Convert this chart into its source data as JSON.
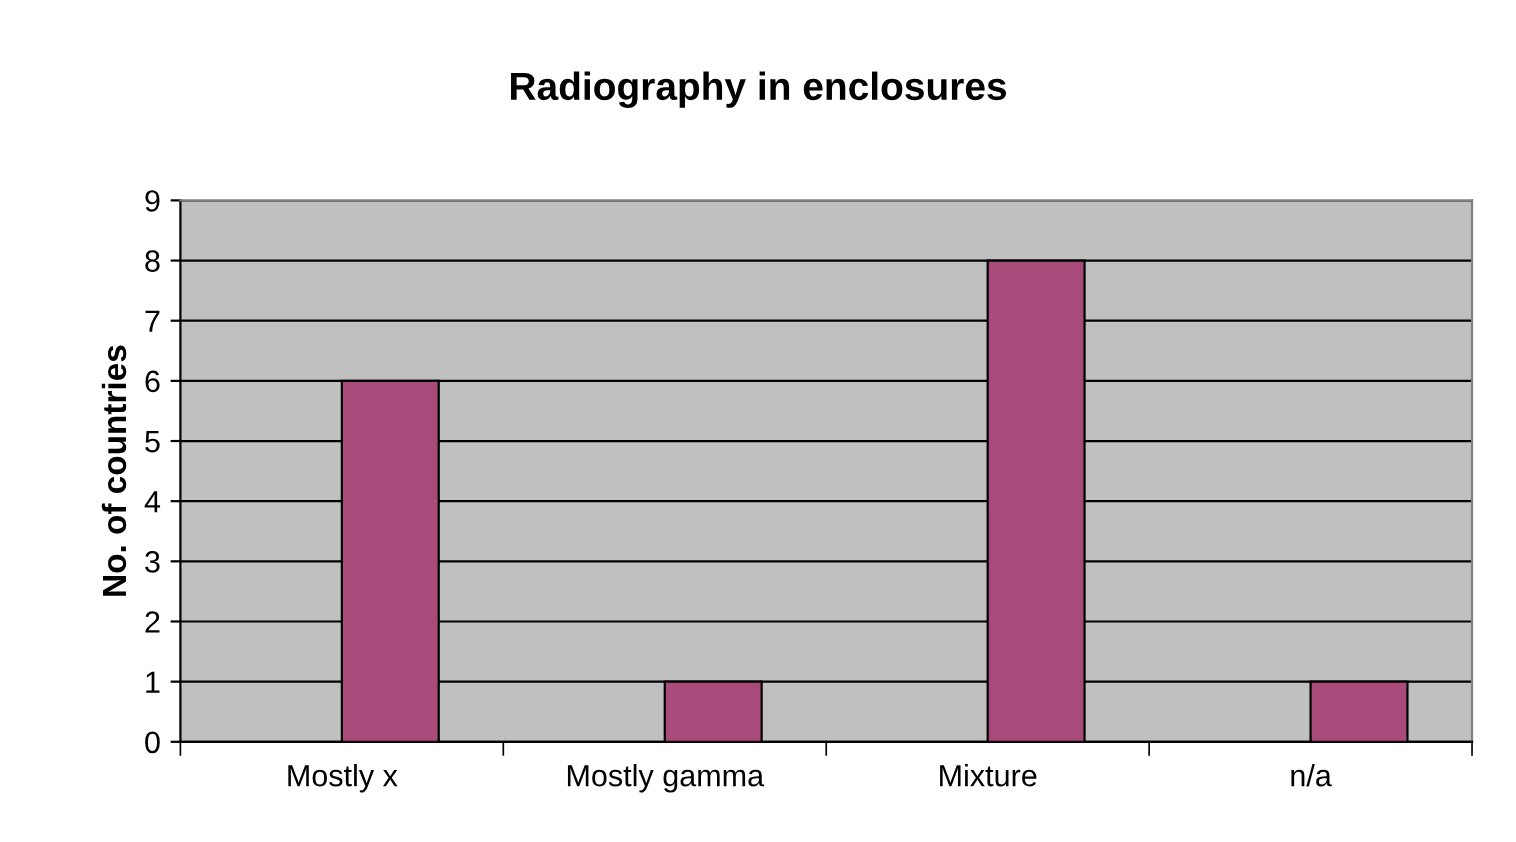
{
  "chart_data": {
    "type": "bar",
    "title": "Radiography in enclosures",
    "ylabel": "No. of countries",
    "categories": [
      "Mostly x",
      "Mostly gamma",
      "Mixture",
      "n/a"
    ],
    "values": [
      6,
      1,
      8,
      1
    ],
    "color": "#a84b7a",
    "ylim": [
      0,
      9
    ],
    "yticks": [
      0,
      1,
      2,
      3,
      4,
      5,
      6,
      7,
      8,
      9
    ],
    "grid": "y"
  }
}
